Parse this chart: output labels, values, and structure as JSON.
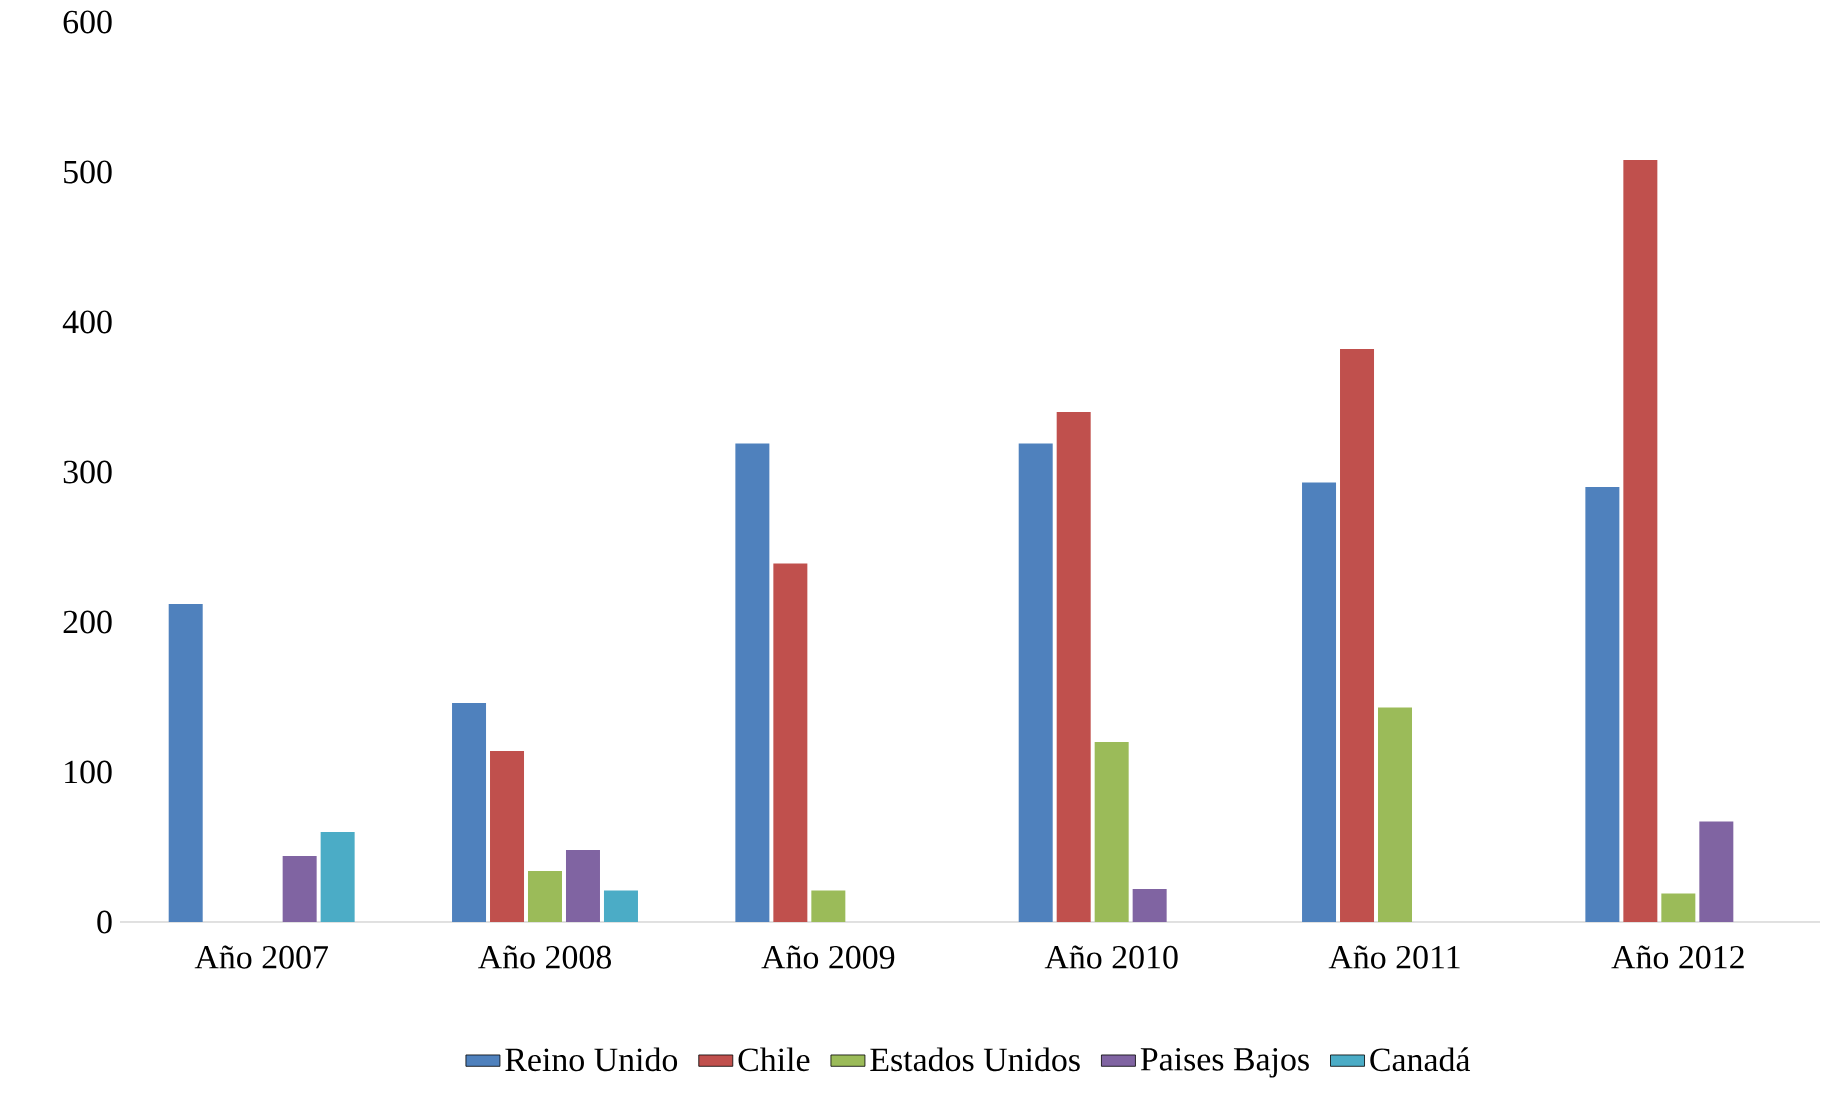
{
  "chart_data": {
    "type": "bar",
    "categories": [
      "Año 2007",
      "Año 2008",
      "Año 2009",
      "Año 2010",
      "Año 2011",
      "Año 2012"
    ],
    "series": [
      {
        "name": "Reino Unido",
        "color": "#4f81bd",
        "values": [
          212,
          146,
          319,
          319,
          293,
          290
        ]
      },
      {
        "name": "Chile",
        "color": "#c0504d",
        "values": [
          null,
          114,
          239,
          340,
          382,
          508
        ]
      },
      {
        "name": "Estados Unidos",
        "color": "#9bbb59",
        "values": [
          null,
          34,
          21,
          120,
          143,
          19
        ]
      },
      {
        "name": "Paises Bajos",
        "color": "#8064a2",
        "values": [
          44,
          48,
          null,
          22,
          null,
          67
        ]
      },
      {
        "name": "Canadá",
        "color": "#4bacc6",
        "values": [
          60,
          21,
          null,
          null,
          null,
          null
        ]
      }
    ],
    "ylim": [
      0,
      600
    ],
    "yticks": [
      0,
      100,
      200,
      300,
      400,
      500,
      600
    ],
    "legend": "bottom"
  }
}
